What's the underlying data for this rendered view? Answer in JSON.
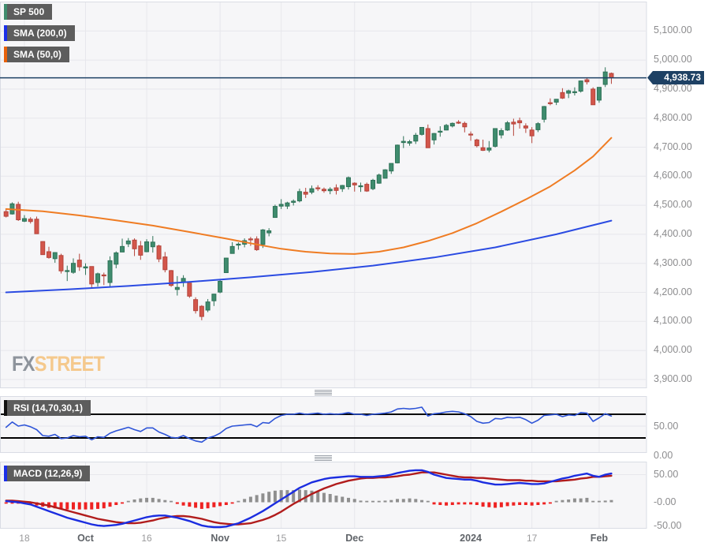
{
  "chart_data": {
    "type": "candlestick",
    "symbol": "SP 500",
    "legend": [
      {
        "label": "SP 500",
        "color": "#3f8c6e"
      },
      {
        "label": "SMA (200,0)",
        "color": "#1b2fe8"
      },
      {
        "label": "SMA (50,0)",
        "color": "#e8610a"
      }
    ],
    "last_price": {
      "label": "4,938.73",
      "value": 4938.73
    },
    "price_axis": {
      "labels": [
        "5,100.00",
        "5,000.00",
        "4,900.00",
        "4,800.00",
        "4,700.00",
        "4,600.00",
        "4,500.00",
        "4,400.00",
        "4,300.00",
        "4,200.00",
        "4,100.00",
        "4,000.00",
        "3,900.00"
      ],
      "values": [
        5100,
        5000,
        4900,
        4800,
        4700,
        4600,
        4500,
        4400,
        4300,
        4200,
        4100,
        4000,
        3900
      ]
    },
    "x_axis": {
      "labels": [
        {
          "text": "18",
          "index": 3,
          "bold": false
        },
        {
          "text": "Oct",
          "index": 13,
          "bold": true
        },
        {
          "text": "16",
          "index": 23,
          "bold": false
        },
        {
          "text": "Nov",
          "index": 35,
          "bold": true
        },
        {
          "text": "15",
          "index": 45,
          "bold": false
        },
        {
          "text": "Dec",
          "index": 57,
          "bold": true
        },
        {
          "text": "2024",
          "index": 76,
          "bold": true
        },
        {
          "text": "17",
          "index": 86,
          "bold": false
        },
        {
          "text": "Feb",
          "index": 97,
          "bold": true
        }
      ]
    },
    "candles": [
      [
        4478,
        4488,
        4458,
        4462
      ],
      [
        4470,
        4510,
        4468,
        4505
      ],
      [
        4503,
        4512,
        4446,
        4450
      ],
      [
        4445,
        4466,
        4442,
        4454
      ],
      [
        4452,
        4459,
        4437,
        4444
      ],
      [
        4452,
        4461,
        4401,
        4402
      ],
      [
        4375,
        4376,
        4329,
        4330
      ],
      [
        4340,
        4357,
        4316,
        4320
      ],
      [
        4316,
        4338,
        4302,
        4337
      ],
      [
        4327,
        4333,
        4265,
        4274
      ],
      [
        4274,
        4292,
        4239,
        4275
      ],
      [
        4269,
        4317,
        4264,
        4300
      ],
      [
        4311,
        4333,
        4274,
        4288
      ],
      [
        4284,
        4300,
        4260,
        4288
      ],
      [
        4289,
        4289,
        4216,
        4229
      ],
      [
        4234,
        4268,
        4220,
        4264
      ],
      [
        4260,
        4268,
        4225,
        4258
      ],
      [
        4234,
        4324,
        4220,
        4309
      ],
      [
        4297,
        4341,
        4283,
        4336
      ],
      [
        4339,
        4385,
        4339,
        4358
      ],
      [
        4367,
        4387,
        4356,
        4377
      ],
      [
        4380,
        4386,
        4325,
        4350
      ],
      [
        4360,
        4377,
        4312,
        4328
      ],
      [
        4340,
        4383,
        4338,
        4374
      ],
      [
        4357,
        4394,
        4337,
        4373
      ],
      [
        4360,
        4364,
        4304,
        4315
      ],
      [
        4322,
        4339,
        4269,
        4278
      ],
      [
        4275,
        4277,
        4219,
        4224
      ],
      [
        4210,
        4256,
        4189,
        4217
      ],
      [
        4235,
        4259,
        4219,
        4248
      ],
      [
        4232,
        4232,
        4181,
        4187
      ],
      [
        4175,
        4183,
        4127,
        4137
      ],
      [
        4152,
        4156,
        4104,
        4117
      ],
      [
        4139,
        4177,
        4132,
        4167
      ],
      [
        4171,
        4195,
        4153,
        4194
      ],
      [
        4201,
        4245,
        4197,
        4238
      ],
      [
        4268,
        4319,
        4268,
        4318
      ],
      [
        4334,
        4373,
        4334,
        4358
      ],
      [
        4364,
        4372,
        4347,
        4366
      ],
      [
        4366,
        4386,
        4355,
        4378
      ],
      [
        4384,
        4391,
        4360,
        4383
      ],
      [
        4384,
        4393,
        4343,
        4347
      ],
      [
        4365,
        4418,
        4353,
        4415
      ],
      [
        4405,
        4421,
        4393,
        4412
      ],
      [
        4458,
        4502,
        4458,
        4496
      ],
      [
        4497,
        4521,
        4487,
        4503
      ],
      [
        4497,
        4512,
        4487,
        4508
      ],
      [
        4510,
        4520,
        4499,
        4514
      ],
      [
        4515,
        4557,
        4510,
        4547
      ],
      [
        4545,
        4560,
        4525,
        4538
      ],
      [
        4545,
        4568,
        4538,
        4557
      ],
      [
        4560,
        4569,
        4549,
        4559
      ],
      [
        4555,
        4561,
        4543,
        4550
      ],
      [
        4550,
        4562,
        4538,
        4555
      ],
      [
        4560,
        4572,
        4537,
        4551
      ],
      [
        4557,
        4570,
        4546,
        4568
      ],
      [
        4564,
        4599,
        4554,
        4595
      ],
      [
        4576,
        4579,
        4547,
        4570
      ],
      [
        4567,
        4578,
        4546,
        4567
      ],
      [
        4572,
        4578,
        4546,
        4549
      ],
      [
        4557,
        4591,
        4552,
        4586
      ],
      [
        4576,
        4609,
        4574,
        4604
      ],
      [
        4593,
        4624,
        4593,
        4622
      ],
      [
        4618,
        4644,
        4608,
        4644
      ],
      [
        4646,
        4709,
        4644,
        4707
      ],
      [
        4716,
        4738,
        4697,
        4720
      ],
      [
        4714,
        4725,
        4705,
        4719
      ],
      [
        4721,
        4749,
        4711,
        4741
      ],
      [
        4744,
        4769,
        4740,
        4768
      ],
      [
        4764,
        4778,
        4698,
        4698
      ],
      [
        4725,
        4749,
        4709,
        4747
      ],
      [
        4754,
        4772,
        4736,
        4755
      ],
      [
        4759,
        4780,
        4758,
        4775
      ],
      [
        4773,
        4785,
        4768,
        4782
      ],
      [
        4786,
        4793,
        4780,
        4783
      ],
      [
        4782,
        4788,
        4751,
        4770
      ],
      [
        4745,
        4754,
        4722,
        4743
      ],
      [
        4725,
        4729,
        4699,
        4705
      ],
      [
        4698,
        4726,
        4687,
        4689
      ],
      [
        4690,
        4721,
        4682,
        4697
      ],
      [
        4703,
        4764,
        4699,
        4764
      ],
      [
        4742,
        4765,
        4730,
        4757
      ],
      [
        4759,
        4790,
        4756,
        4784
      ],
      [
        4786,
        4798,
        4739,
        4780
      ],
      [
        4791,
        4802,
        4764,
        4784
      ],
      [
        4773,
        4782,
        4749,
        4766
      ],
      [
        4759,
        4769,
        4714,
        4739
      ],
      [
        4760,
        4786,
        4752,
        4781
      ],
      [
        4796,
        4842,
        4785,
        4840
      ],
      [
        4853,
        4868,
        4844,
        4850
      ],
      [
        4855,
        4866,
        4845,
        4865
      ],
      [
        4888,
        4903,
        4866,
        4869
      ],
      [
        4886,
        4898,
        4869,
        4894
      ],
      [
        4888,
        4906,
        4878,
        4891
      ],
      [
        4893,
        4929,
        4888,
        4928
      ],
      [
        4932,
        4940,
        4916,
        4925
      ],
      [
        4900,
        4906,
        4846,
        4846
      ],
      [
        4862,
        4906,
        4853,
        4906
      ],
      [
        4916,
        4975,
        4907,
        4959
      ],
      [
        4954,
        4957,
        4918,
        4939
      ]
    ],
    "sma50": [
      [
        0,
        4487
      ],
      [
        6,
        4479
      ],
      [
        12,
        4465
      ],
      [
        18,
        4448
      ],
      [
        24,
        4430
      ],
      [
        30,
        4408
      ],
      [
        36,
        4385
      ],
      [
        41,
        4365
      ],
      [
        45,
        4350
      ],
      [
        49,
        4340
      ],
      [
        53,
        4334
      ],
      [
        57,
        4332
      ],
      [
        61,
        4340
      ],
      [
        65,
        4355
      ],
      [
        69,
        4377
      ],
      [
        73,
        4404
      ],
      [
        77,
        4438
      ],
      [
        81,
        4478
      ],
      [
        85,
        4520
      ],
      [
        89,
        4565
      ],
      [
        93,
        4620
      ],
      [
        96,
        4668
      ],
      [
        99,
        4732
      ]
    ],
    "sma200": [
      [
        0,
        4200
      ],
      [
        10,
        4210
      ],
      [
        20,
        4222
      ],
      [
        30,
        4236
      ],
      [
        40,
        4252
      ],
      [
        50,
        4270
      ],
      [
        60,
        4292
      ],
      [
        70,
        4320
      ],
      [
        80,
        4355
      ],
      [
        90,
        4400
      ],
      [
        99,
        4447
      ]
    ],
    "rsi": {
      "label": "RSI (14,70,30,1)",
      "levels": [
        70,
        30
      ],
      "axis": [
        {
          "label": "50.00",
          "value": 50
        },
        {
          "label": "0.00",
          "value": 0
        }
      ],
      "values": [
        48,
        57,
        50,
        52,
        49,
        44,
        34,
        33,
        36,
        29,
        30,
        34,
        32,
        33,
        27,
        32,
        31,
        38,
        42,
        45,
        48,
        44,
        41,
        47,
        47,
        40,
        36,
        31,
        30,
        34,
        29,
        25,
        23,
        30,
        33,
        38,
        46,
        50,
        51,
        52,
        53,
        49,
        56,
        55,
        63,
        68,
        70,
        70,
        72,
        70,
        71,
        72,
        70,
        71,
        70,
        71,
        73,
        70,
        70,
        68,
        70,
        71,
        72,
        74,
        79,
        80,
        79,
        80,
        82,
        67,
        71,
        72,
        74,
        75,
        74,
        71,
        66,
        58,
        55,
        56,
        63,
        62,
        65,
        64,
        65,
        61,
        55,
        60,
        68,
        69,
        70,
        66,
        69,
        68,
        73,
        72,
        58,
        64,
        71,
        67
      ]
    },
    "macd": {
      "label": "MACD (12,26,9)",
      "axis": [
        {
          "label": "50.00",
          "value": 50
        },
        {
          "label": "-0.00",
          "value": 0
        },
        {
          "label": "-50.00",
          "value": -50
        }
      ],
      "macd_line": [
        2,
        1,
        0,
        -2,
        -4,
        -8,
        -12,
        -16,
        -20,
        -24,
        -28,
        -31,
        -34,
        -37,
        -40,
        -42,
        -43,
        -42,
        -41,
        -39,
        -36,
        -33,
        -30,
        -27,
        -25,
        -24,
        -24,
        -26,
        -28,
        -31,
        -34,
        -38,
        -42,
        -44,
        -45,
        -45,
        -44,
        -41,
        -38,
        -33,
        -28,
        -22,
        -16,
        -9,
        -2,
        5,
        12,
        19,
        26,
        31,
        36,
        39,
        42,
        44,
        45,
        46,
        47,
        47,
        46,
        46,
        46,
        47,
        48,
        50,
        53,
        55,
        57,
        58,
        58,
        55,
        50,
        47,
        44,
        43,
        42,
        41,
        41,
        39,
        36,
        34,
        32,
        32,
        33,
        34,
        35,
        34,
        33,
        33,
        34,
        37,
        40,
        43,
        45,
        48,
        50,
        52,
        48,
        46,
        50,
        52
      ],
      "signal_line": [
        3,
        3,
        2,
        1,
        0,
        -2,
        -4,
        -6,
        -9,
        -12,
        -15,
        -18,
        -21,
        -24,
        -27,
        -30,
        -32,
        -34,
        -36,
        -37,
        -38,
        -38,
        -37,
        -35,
        -33,
        -30,
        -28,
        -26,
        -25,
        -25,
        -26,
        -28,
        -30,
        -33,
        -36,
        -38,
        -39,
        -40,
        -40,
        -39,
        -38,
        -35,
        -32,
        -28,
        -23,
        -17,
        -10,
        -3,
        3,
        9,
        15,
        20,
        25,
        29,
        33,
        36,
        39,
        41,
        43,
        44,
        44,
        45,
        45,
        46,
        47,
        49,
        50,
        52,
        54,
        54,
        54,
        52,
        50,
        48,
        46,
        45,
        45,
        44,
        44,
        43,
        42,
        41,
        40,
        40,
        40,
        39,
        39,
        38,
        38,
        38,
        38,
        39,
        40,
        41,
        43,
        44,
        46,
        46,
        47,
        48
      ],
      "hist": [
        -1,
        -2,
        -2,
        -3,
        -4,
        -6,
        -8,
        -10,
        -11,
        -12,
        -13,
        -13,
        -13,
        -13,
        -13,
        -12,
        -11,
        -8,
        -5,
        -2,
        2,
        5,
        7,
        8,
        8,
        6,
        4,
        0,
        -3,
        -6,
        -8,
        -10,
        -12,
        -11,
        -9,
        -7,
        -5,
        -1,
        2,
        6,
        10,
        13,
        16,
        19,
        21,
        22,
        22,
        22,
        23,
        22,
        21,
        19,
        17,
        15,
        12,
        10,
        8,
        6,
        3,
        2,
        2,
        2,
        3,
        4,
        6,
        6,
        7,
        6,
        4,
        1,
        -4,
        -5,
        -6,
        -5,
        -4,
        -4,
        -4,
        -5,
        -8,
        -9,
        -10,
        -9,
        -7,
        -6,
        -5,
        -5,
        -6,
        -5,
        -4,
        -1,
        2,
        4,
        5,
        7,
        7,
        8,
        2,
        0,
        3,
        4
      ]
    },
    "watermark": {
      "fx": "FX",
      "street": "STREET"
    }
  },
  "colors": {
    "candle_up": "#3f8c6e",
    "candle_up_stroke": "#2e7257",
    "candle_down": "#d3564b",
    "candle_down_stroke": "#b5443b",
    "sma200": "#2b4be2",
    "sma50": "#ef7c23",
    "rsi_line": "#2f55d8",
    "rsi_level": "#000000",
    "macd_line": "#1b2de0",
    "signal_line": "#b11c1c",
    "hist_pos": "#8f8f8f",
    "hist_neg": "#ee2222",
    "last_price": "#1e4164",
    "grid": "#e7e7ec",
    "panel_bg": "#f6f6f8",
    "panel_border": "#d9dce4",
    "logo_fx": "#8e949c",
    "logo_street": "#f5c98d"
  }
}
